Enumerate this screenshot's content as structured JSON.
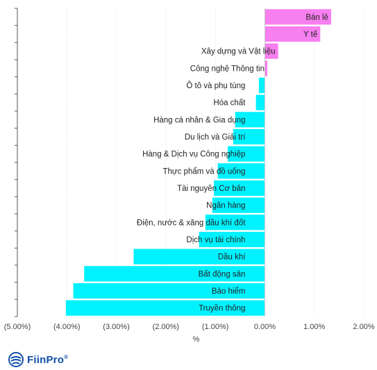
{
  "chart_data": {
    "type": "bar",
    "orientation": "horizontal",
    "categories": [
      "Bán lẻ",
      "Y tế",
      "Xây dựng và Vật liệu",
      "Công nghệ Thông tin",
      "Ô tô và phụ tùng",
      "Hóa chất",
      "Hàng cá nhân & Gia dụng",
      "Du lịch và Giải trí",
      "Hàng & Dịch vụ Công nghiệp",
      "Thực phẩm và đồ uống",
      "Tài nguyên Cơ bản",
      "Ngân hàng",
      "Điện, nước & xăng dầu khí đốt",
      "Dịch vụ tài chính",
      "Dầu khí",
      "Bất động sản",
      "Bảo hiểm",
      "Truyền thông"
    ],
    "values": [
      1.34,
      1.12,
      0.27,
      0.05,
      -0.12,
      -0.18,
      -0.6,
      -0.64,
      -0.75,
      -0.95,
      -1.03,
      -1.06,
      -1.2,
      -1.33,
      -2.65,
      -3.65,
      -3.87,
      -4.02
    ],
    "unit": "%",
    "title": "",
    "xlabel": "%",
    "ylabel": "",
    "xlim": [
      -5,
      2
    ],
    "xticks": [
      "(5.00%)",
      "(4.00%)",
      "(3.00%)",
      "(2.00%)",
      "(1.00%)",
      "0.00%",
      "1.00%",
      "2.00%"
    ],
    "xtick_values": [
      -5,
      -4,
      -3,
      -2,
      -1,
      0,
      1,
      2
    ],
    "grid": true,
    "legend": "none",
    "colors": {
      "positive": "#f77ff0",
      "negative": "#00f2ff",
      "grid": "#e0e0e0",
      "axis": "#555555"
    }
  },
  "branding": {
    "logo_text": "FiinPro",
    "logo_mark": "®",
    "logo_icon": "fiinpro-globe-icon",
    "logo_color": "#0f4fa8"
  }
}
